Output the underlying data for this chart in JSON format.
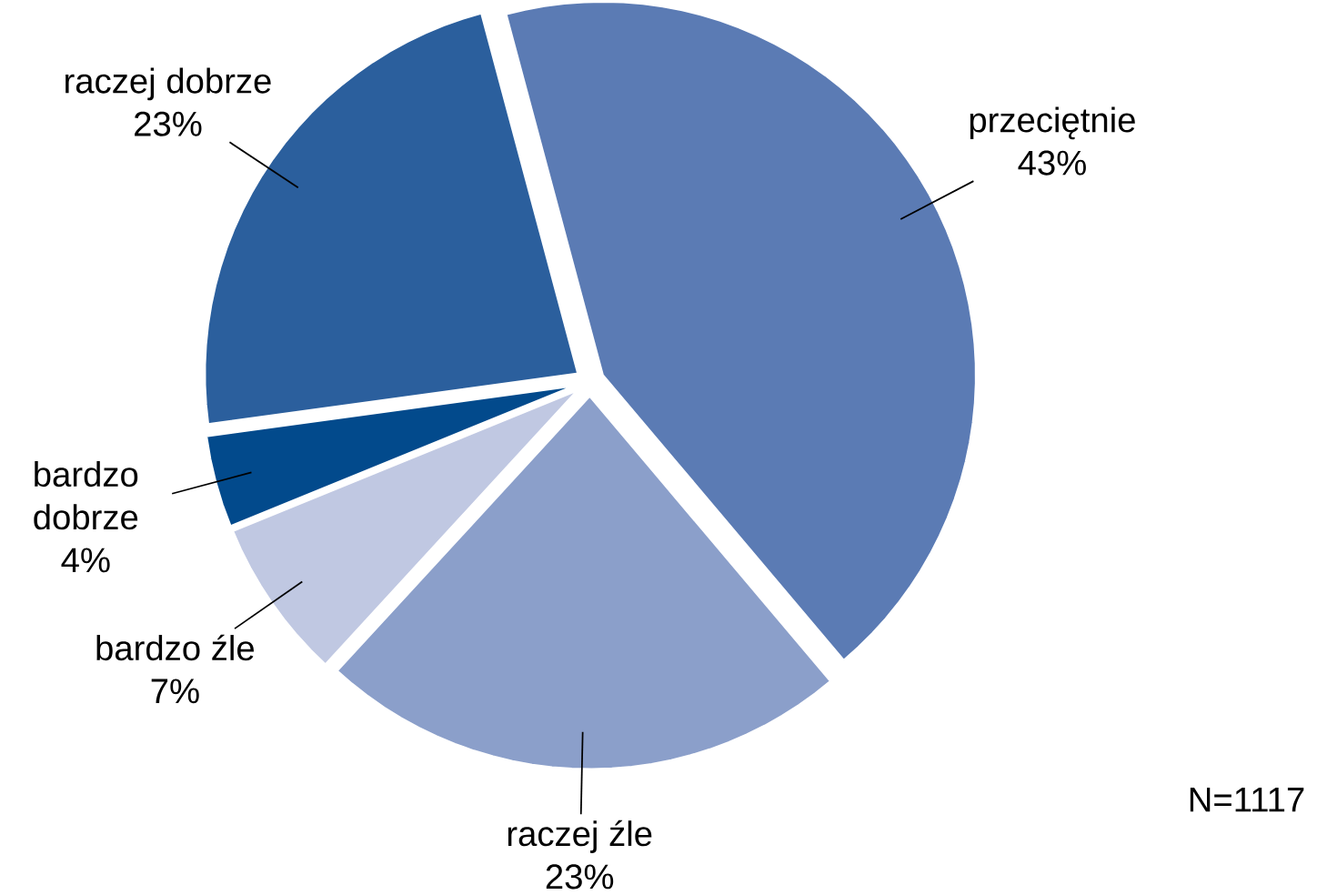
{
  "chart_data": {
    "type": "pie",
    "categories": [
      "przeciętnie",
      "raczej źle",
      "bardzo źle",
      "bardzo dobrze",
      "raczej dobrze"
    ],
    "values": [
      43,
      23,
      7,
      4,
      23
    ],
    "value_labels": [
      "43%",
      "23%",
      "7%",
      "4%",
      "23%"
    ],
    "colors": [
      "#5b7bb4",
      "#8b9fca",
      "#c0c8e2",
      "#024a8c",
      "#2b5f9d"
    ],
    "annotations": [
      "N=1117"
    ]
  }
}
